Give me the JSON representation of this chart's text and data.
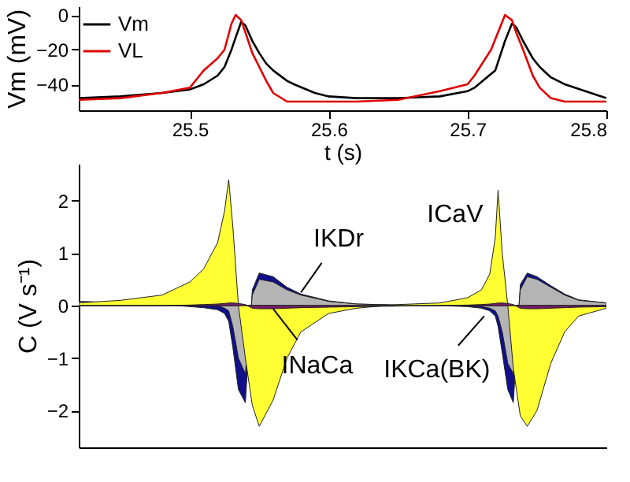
{
  "chart_data": [
    {
      "type": "line",
      "xlabel": "t (s)",
      "ylabel": "Vm (mV)",
      "legend": "top left",
      "grid": false,
      "xlim": [
        25.42,
        25.8
      ],
      "xticks": [
        {
          "value": 25.5,
          "label": "25.5"
        },
        {
          "value": 25.6,
          "label": "25.6"
        },
        {
          "value": 25.7,
          "label": "25.7"
        },
        {
          "value": 25.8,
          "label": "25.8"
        }
      ],
      "ylim": [
        -55,
        5
      ],
      "yticks": [
        -40,
        -20,
        0
      ],
      "x": [
        25.42,
        25.45,
        25.48,
        25.5,
        25.51,
        25.52,
        25.525,
        25.53,
        25.533,
        25.537,
        25.54,
        25.545,
        25.55,
        25.555,
        25.56,
        25.57,
        25.575,
        25.59,
        25.6,
        25.62,
        25.65,
        25.68,
        25.7,
        25.705,
        25.717,
        25.72,
        25.727,
        25.732,
        25.735,
        25.74,
        25.747,
        25.752,
        25.76,
        25.77,
        25.8
      ],
      "series": [
        {
          "name": "Vm",
          "color": "#000000",
          "values": [
            -48,
            -47,
            -45,
            -43,
            -40,
            -35,
            -30,
            -20,
            -13,
            -4,
            -6,
            -15,
            -22,
            -28,
            -32,
            -38,
            -40,
            -45,
            -47,
            -48,
            -48,
            -47,
            -44,
            -42,
            -34,
            -32,
            -15,
            -5,
            -7,
            -15,
            -25,
            -30,
            -36,
            -40,
            -48
          ]
        },
        {
          "name": "VL",
          "color": "#e00000",
          "values": [
            -49,
            -48,
            -45,
            -42,
            -32,
            -25,
            -20,
            -5,
            0,
            -3,
            -10,
            -22,
            -30,
            -38,
            -45,
            -50,
            -50,
            -50,
            -50,
            -50,
            -49,
            -44,
            -40,
            -35,
            -20,
            -14,
            0,
            -3,
            -10,
            -20,
            -35,
            -42,
            -48,
            -50,
            -50
          ]
        }
      ]
    },
    {
      "type": "area",
      "ylabel": "C (V s⁻¹)",
      "tick_labels": "y",
      "grid": false,
      "xlim": [
        25.42,
        25.8
      ],
      "ylim": [
        -2.7,
        2.7
      ],
      "yticks": [
        -2,
        -1,
        0,
        1,
        2
      ],
      "x": [
        25.42,
        25.45,
        25.48,
        25.5,
        25.51,
        25.52,
        25.525,
        25.528,
        25.531,
        25.535,
        25.54,
        25.545,
        25.55,
        25.56,
        25.57,
        25.58,
        25.6,
        25.62,
        25.65,
        25.68,
        25.7,
        25.71,
        25.716,
        25.72,
        25.722,
        25.725,
        25.729,
        25.733,
        25.738,
        25.743,
        25.75,
        25.76,
        25.77,
        25.78,
        25.8
      ],
      "series": [
        {
          "color": "#10108a",
          "values": [
            0.08,
            0.05,
            0.02,
            -0.02,
            -0.04,
            -0.08,
            -0.15,
            -0.3,
            -0.8,
            -1.6,
            -1.85,
            0.3,
            0.62,
            0.55,
            0.35,
            0.22,
            0.09,
            0.03,
            0.01,
            0,
            -0.02,
            -0.05,
            -0.1,
            -0.2,
            -0.4,
            -0.9,
            -1.6,
            -1.85,
            0.4,
            0.62,
            0.55,
            0.38,
            0.22,
            0.11,
            0.05
          ]
        },
        {
          "color": "#b4b4b4",
          "values": [
            0.08,
            0.05,
            0.02,
            0,
            0,
            0,
            -0.05,
            -0.1,
            -0.4,
            -1.0,
            -1.3,
            0.2,
            0.5,
            0.45,
            0.3,
            0.2,
            0.08,
            0.03,
            0.01,
            0,
            0,
            -0.02,
            -0.05,
            -0.1,
            -0.2,
            -0.5,
            -1.1,
            -1.3,
            0.3,
            0.55,
            0.5,
            0.35,
            0.2,
            0.1,
            0.05
          ]
        },
        {
          "color": "#ffff33",
          "values": [
            0.05,
            0.1,
            0.2,
            0.45,
            0.7,
            1.2,
            1.8,
            2.4,
            1.5,
            0,
            -1.0,
            -1.9,
            -2.3,
            -1.8,
            -1.0,
            -0.5,
            -0.15,
            -0.05,
            0.02,
            0.05,
            0.15,
            0.3,
            0.6,
            1.3,
            2.2,
            1.0,
            0,
            -1.2,
            -2.1,
            -2.3,
            -2.0,
            -1.1,
            -0.5,
            -0.2,
            -0.05
          ]
        },
        {
          "color": "#7a1a70",
          "values": [
            0,
            0,
            0,
            0.01,
            0.02,
            0.03,
            0.04,
            0.05,
            0.05,
            0.04,
            0.02,
            -0.05,
            -0.06,
            -0.06,
            -0.05,
            -0.04,
            -0.03,
            -0.02,
            -0.01,
            0,
            0.01,
            0.02,
            0.03,
            0.04,
            0.05,
            0.05,
            0.04,
            0.02,
            -0.05,
            -0.06,
            -0.06,
            -0.05,
            -0.04,
            -0.03,
            -0.02
          ]
        }
      ],
      "annotations": [
        {
          "text": "IKDr",
          "x": 25.58,
          "y": 0.25
        },
        {
          "text": "ICaV",
          "x": 25.716,
          "y": 0.6
        },
        {
          "text": "INaCa",
          "x": 25.56,
          "y": -0.06
        },
        {
          "text": "IKCa(BK)",
          "x": 25.712,
          "y": -0.2
        }
      ]
    }
  ]
}
